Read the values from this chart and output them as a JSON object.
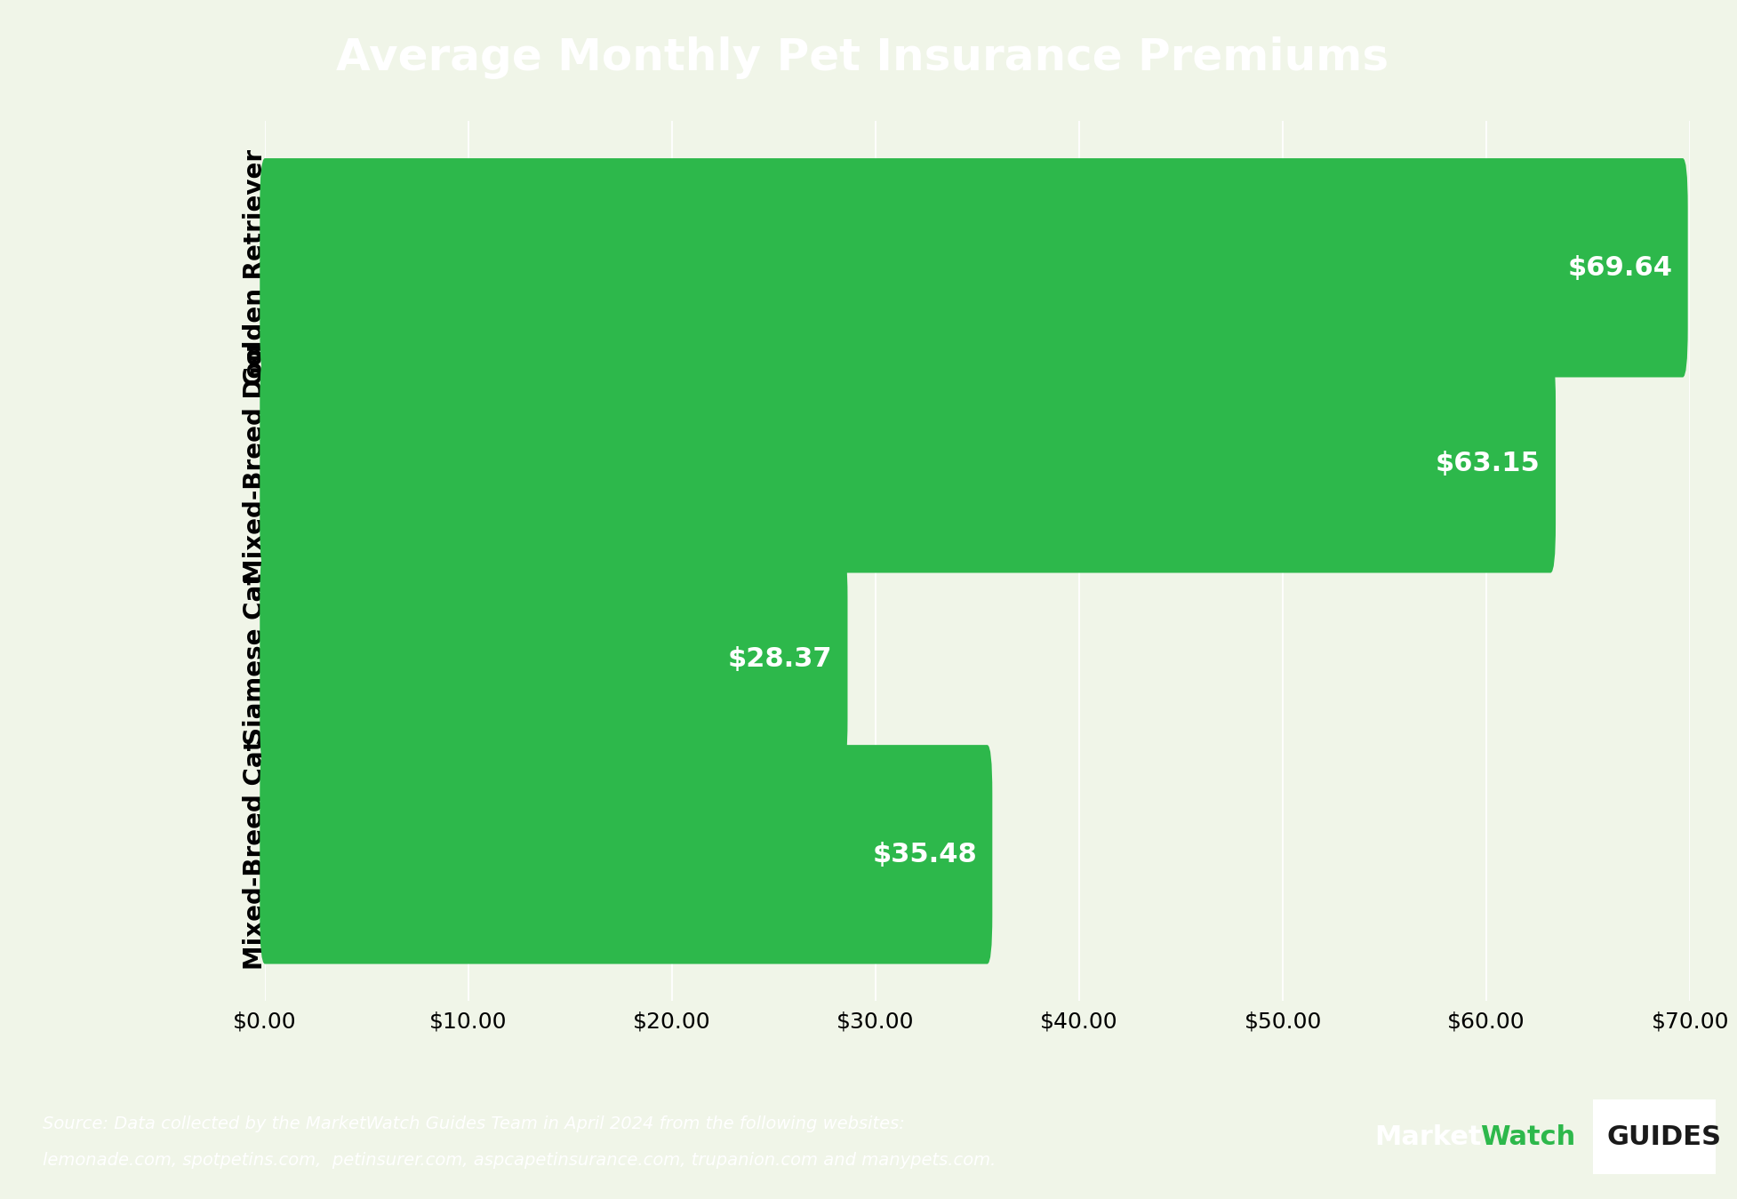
{
  "title": "Average Monthly Pet Insurance Premiums",
  "title_bg": "#3a3a3a",
  "title_color": "#ffffff",
  "chart_bg": "#f0f5e8",
  "footer_bg": "#3a3a3a",
  "footer_text_line1": "Source: Data collected by the MarketWatch Guides Team in April 2024 from the following websites:",
  "footer_text_line2": "lemonade.com, spotpetins.com,  petinsurer.com, aspcapetinsurance.com, trupanion.com and manypets.com.",
  "footer_color": "#ffffff",
  "bar_color": "#2db84b",
  "categories": [
    "Golden Retriever",
    "Mixed-Breed Dog",
    "Siamese Cat",
    "Mixed-Breed Cat"
  ],
  "values": [
    69.64,
    63.15,
    28.37,
    35.48
  ],
  "labels": [
    "$69.64",
    "$63.15",
    "$28.37",
    "$35.48"
  ],
  "xlim_max": 70,
  "xticks": [
    0,
    10,
    20,
    30,
    40,
    50,
    60,
    70
  ],
  "xtick_labels": [
    "$0.00",
    "$10.00",
    "$20.00",
    "$30.00",
    "$40.00",
    "$50.00",
    "$60.00",
    "$70.00"
  ],
  "ylabel_fontsize": 20,
  "tick_fontsize": 18,
  "title_fontsize": 36,
  "value_label_fontsize": 22,
  "footer_fontsize": 14
}
